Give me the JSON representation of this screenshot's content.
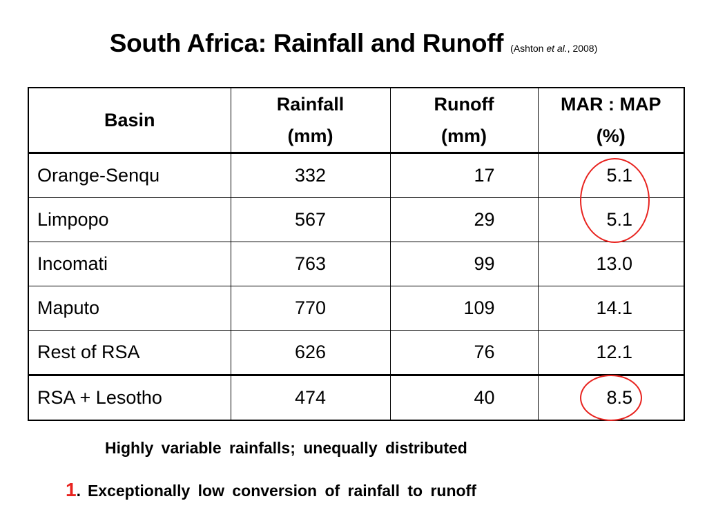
{
  "title": {
    "main": "South Africa: Rainfall and Runoff",
    "cite_open": "(Ashton ",
    "cite_italic": "et al.",
    "cite_close": ", 2008)"
  },
  "table": {
    "headers": [
      {
        "line1": "Basin",
        "line2": ""
      },
      {
        "line1": "Rainfall",
        "line2": "(mm)"
      },
      {
        "line1": "Runoff",
        "line2": "(mm)"
      },
      {
        "line1": "MAR : MAP",
        "line2": "(%)"
      }
    ],
    "rows": [
      {
        "basin": "Orange-Senqu",
        "rainfall": "332",
        "runoff": "17",
        "ratio": "5.1"
      },
      {
        "basin": "Limpopo",
        "rainfall": "567",
        "runoff": "29",
        "ratio": "5.1"
      },
      {
        "basin": "Incomati",
        "rainfall": "763",
        "runoff": "99",
        "ratio": "13.0"
      },
      {
        "basin": "Maputo",
        "rainfall": "770",
        "runoff": "109",
        "ratio": "14.1"
      },
      {
        "basin": "Rest of RSA",
        "rainfall": "626",
        "runoff": "76",
        "ratio": "12.1"
      },
      {
        "basin": "RSA + Lesotho",
        "rainfall": "474",
        "runoff": "40",
        "ratio": "8.5"
      }
    ]
  },
  "note": "Highly variable rainfalls; unequally distributed",
  "point": {
    "number": "1",
    "separator": ".",
    "text": "Exceptionally low conversion of rainfall to runoff"
  },
  "colors": {
    "highlight": "#e8231f"
  }
}
